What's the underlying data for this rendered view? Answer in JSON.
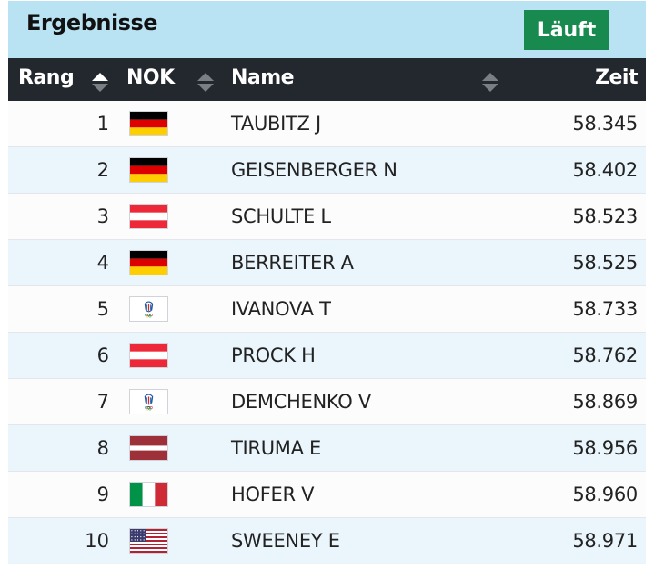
{
  "header": {
    "title": "Ergebnisse",
    "laeufe_label": "Läuft"
  },
  "columns": {
    "rang": "Rang",
    "nok": "NOK",
    "name": "Name",
    "zeit": "Zeit"
  },
  "results": [
    {
      "rank": "1",
      "flag": "ger",
      "name": "TAUBITZ J",
      "time": "58.345"
    },
    {
      "rank": "2",
      "flag": "ger",
      "name": "GEISENBERGER N",
      "time": "58.402"
    },
    {
      "rank": "3",
      "flag": "aut",
      "name": "SCHULTE L",
      "time": "58.523"
    },
    {
      "rank": "4",
      "flag": "ger",
      "name": "BERREITER A",
      "time": "58.525"
    },
    {
      "rank": "5",
      "flag": "roc",
      "name": "IVANOVA T",
      "time": "58.733"
    },
    {
      "rank": "6",
      "flag": "aut",
      "name": "PROCK H",
      "time": "58.762"
    },
    {
      "rank": "7",
      "flag": "roc",
      "name": "DEMCHENKO V",
      "time": "58.869"
    },
    {
      "rank": "8",
      "flag": "lat",
      "name": "TIRUMA E",
      "time": "58.956"
    },
    {
      "rank": "9",
      "flag": "ita",
      "name": "HOFER V",
      "time": "58.960"
    },
    {
      "rank": "10",
      "flag": "usa",
      "name": "SWEENEY E",
      "time": "58.971"
    }
  ],
  "colors": {
    "topbar_bg": "#b9e3f2",
    "button_bg": "#188a4f",
    "header_bg": "#23282f",
    "row_alt_bg": "#eaf5fc"
  },
  "icons": {
    "ger": "germany-flag-icon",
    "aut": "austria-flag-icon",
    "roc": "roc-emblem-icon",
    "lat": "latvia-flag-icon",
    "ita": "italy-flag-icon",
    "usa": "usa-flag-icon"
  }
}
